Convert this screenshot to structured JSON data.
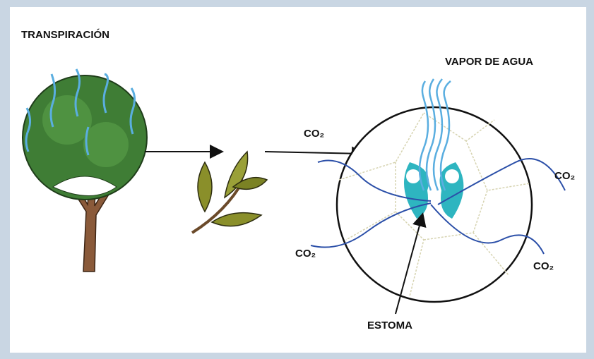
{
  "title": "TRANSPIRACIÓN",
  "vapor_label": "VAPOR DE AGUA",
  "stoma_label": "ESTOMA",
  "co2_labels": [
    "CO₂",
    "CO₂",
    "CO₂",
    "CO₂"
  ]
}
